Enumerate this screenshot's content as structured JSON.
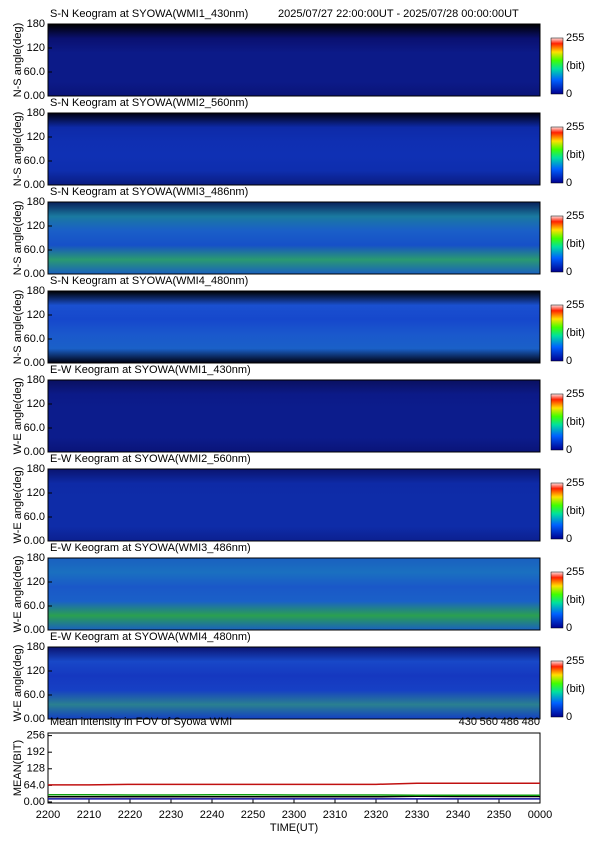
{
  "chart_data": [
    {
      "type": "heatmap",
      "title": "S-N Keogram at SYOWA(WMI1_430nm)",
      "subtitle": "2025/07/27 22:00:00UT - 2025/07/28 00:00:00UT",
      "ylabel": "N-S angle(deg)",
      "ylim": [
        0,
        180
      ],
      "yticks": [
        {
          "value": 0,
          "label": "0.00"
        },
        {
          "value": 60,
          "label": "60.0"
        },
        120,
        180
      ],
      "colorbar_lim": [
        0,
        255
      ],
      "colorbar_ticks": [
        0,
        255
      ],
      "colorbar_label": "(bit)",
      "band_colors": [
        "#000000",
        "#0a1070",
        "#0c1a88",
        "#0c1a88",
        "#0c1a88",
        "#0a1478"
      ]
    },
    {
      "type": "heatmap",
      "title": "S-N Keogram at SYOWA(WMI2_560nm)",
      "ylabel": "N-S angle(deg)",
      "ylim": [
        0,
        180
      ],
      "yticks": [
        {
          "value": 0,
          "label": "0.00"
        },
        {
          "value": 60,
          "label": "60.0"
        },
        120,
        180
      ],
      "colorbar_lim": [
        0,
        255
      ],
      "colorbar_ticks": [
        0,
        255
      ],
      "colorbar_label": "(bit)",
      "band_colors": [
        "#000010",
        "#0d2aa8",
        "#0f2fb2",
        "#0f30b4",
        "#0e2eae",
        "#0a1c80"
      ]
    },
    {
      "type": "heatmap",
      "title": "S-N Keogram at SYOWA(WMI3_486nm)",
      "ylabel": "N-S angle(deg)",
      "ylim": [
        0,
        180
      ],
      "yticks": [
        {
          "value": 0,
          "label": "0.00"
        },
        {
          "value": 60,
          "label": "60.0"
        },
        120,
        180
      ],
      "colorbar_lim": [
        0,
        255
      ],
      "colorbar_ticks": [
        0,
        255
      ],
      "colorbar_label": "(bit)",
      "band_colors": [
        "#08205a",
        "#1a7aa0",
        "#1a5fc8",
        "#1650c8",
        "#2a9a70",
        "#1a60c0"
      ]
    },
    {
      "type": "heatmap",
      "title": "S-N Keogram at SYOWA(WMI4_480nm)",
      "ylabel": "N-S angle(deg)",
      "ylim": [
        0,
        180
      ],
      "yticks": [
        {
          "value": 0,
          "label": "0.00"
        },
        {
          "value": 60,
          "label": "60.0"
        },
        120,
        180
      ],
      "colorbar_lim": [
        0,
        255
      ],
      "colorbar_ticks": [
        0,
        255
      ],
      "colorbar_label": "(bit)",
      "band_colors": [
        "#000000",
        "#1a50d0",
        "#1648cc",
        "#1a58cc",
        "#1a60c8",
        "#000010"
      ]
    },
    {
      "type": "heatmap",
      "title": "E-W Keogram at SYOWA(WMI1_430nm)",
      "ylabel": "W-E angle(deg)",
      "ylim": [
        0,
        180
      ],
      "yticks": [
        {
          "value": 0,
          "label": "0.00"
        },
        {
          "value": 60,
          "label": "60.0"
        },
        120,
        180
      ],
      "colorbar_lim": [
        0,
        255
      ],
      "colorbar_ticks": [
        0,
        255
      ],
      "colorbar_label": "(bit)",
      "band_colors": [
        "#0a1060",
        "#0c1a88",
        "#0c1c8c",
        "#0c1c8c",
        "#0c1c8c",
        "#0a1478"
      ]
    },
    {
      "type": "heatmap",
      "title": "E-W Keogram at SYOWA(WMI2_560nm)",
      "ylabel": "W-E angle(deg)",
      "ylim": [
        0,
        180
      ],
      "yticks": [
        {
          "value": 0,
          "label": "0.00"
        },
        {
          "value": 60,
          "label": "60.0"
        },
        120,
        180
      ],
      "colorbar_lim": [
        0,
        255
      ],
      "colorbar_ticks": [
        0,
        255
      ],
      "colorbar_label": "(bit)",
      "band_colors": [
        "#0a1470",
        "#0e2aa6",
        "#0e2ca8",
        "#0e2ca8",
        "#0e2ca8",
        "#0c2090"
      ]
    },
    {
      "type": "heatmap",
      "title": "E-W Keogram at SYOWA(WMI3_486nm)",
      "ylabel": "W-E angle(deg)",
      "ylim": [
        0,
        180
      ],
      "yticks": [
        {
          "value": 0,
          "label": "0.00"
        },
        {
          "value": 60,
          "label": "60.0"
        },
        120,
        180
      ],
      "colorbar_lim": [
        0,
        255
      ],
      "colorbar_ticks": [
        0,
        255
      ],
      "colorbar_label": "(bit)",
      "band_colors": [
        "#1a60c0",
        "#1a70c0",
        "#1a58c8",
        "#1a60c8",
        "#2aa050",
        "#1a60c0"
      ]
    },
    {
      "type": "heatmap",
      "title": "E-W Keogram at SYOWA(WMI4_480nm)",
      "ylabel": "W-E angle(deg)",
      "ylim": [
        0,
        180
      ],
      "yticks": [
        {
          "value": 0,
          "label": "0.00"
        },
        {
          "value": 60,
          "label": "60.0"
        },
        120,
        180
      ],
      "colorbar_lim": [
        0,
        255
      ],
      "colorbar_ticks": [
        0,
        255
      ],
      "colorbar_label": "(bit)",
      "band_colors": [
        "#0a1470",
        "#1848c8",
        "#1538c0",
        "#1640c4",
        "#2a8090",
        "#1440c4"
      ]
    },
    {
      "type": "line",
      "title": "Mean intensity in FOV of Syowa WMI",
      "xlabel": "TIME(UT)",
      "ylabel": "MEAN(BIT)",
      "x": [
        0,
        10,
        20,
        30,
        40,
        50,
        60,
        70,
        80,
        90,
        100,
        110,
        120
      ],
      "xlim": [
        0,
        120
      ],
      "xticks": [
        {
          "value": 0,
          "label": "2200"
        },
        {
          "value": 10,
          "label": "2210"
        },
        {
          "value": 20,
          "label": "2220"
        },
        {
          "value": 30,
          "label": "2230"
        },
        {
          "value": 40,
          "label": "2240"
        },
        {
          "value": 50,
          "label": "2250"
        },
        {
          "value": 60,
          "label": "2300"
        },
        {
          "value": 70,
          "label": "2310"
        },
        {
          "value": 80,
          "label": "2320"
        },
        {
          "value": 90,
          "label": "2330"
        },
        {
          "value": 100,
          "label": "2340"
        },
        {
          "value": 110,
          "label": "2350"
        },
        {
          "value": 120,
          "label": "0000"
        }
      ],
      "ylim": [
        -4,
        266
      ],
      "yticks": [
        {
          "value": 0,
          "label": "0.00"
        },
        {
          "value": 64,
          "label": "64.0"
        },
        128,
        192,
        256
      ],
      "series": [
        {
          "name": "430",
          "color": "#1010a0",
          "values": [
            12,
            12,
            12,
            12,
            12,
            12,
            12,
            12,
            12,
            12,
            12,
            12,
            12
          ]
        },
        {
          "name": "560",
          "color": "#10a010",
          "values": [
            28,
            28,
            27,
            27,
            28,
            28,
            27,
            27,
            27,
            26,
            26,
            26,
            26
          ]
        },
        {
          "name": "486",
          "color": "#c01010",
          "values": [
            66,
            66,
            68,
            68,
            68,
            68,
            68,
            68,
            68,
            72,
            72,
            72,
            72
          ]
        },
        {
          "name": "480",
          "color": "#000000",
          "values": [
            20,
            20,
            20,
            20,
            20,
            20,
            20,
            20,
            20,
            22,
            21,
            21,
            21
          ]
        }
      ]
    }
  ]
}
